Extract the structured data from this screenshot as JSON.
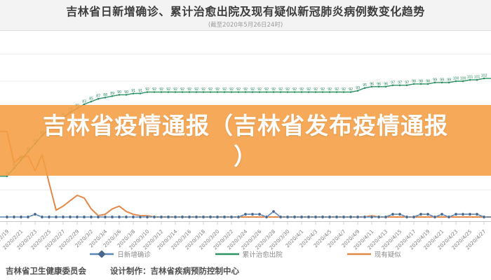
{
  "header": {
    "title": "吉林省日新增确诊、累计治愈出院及现有疑似新冠肺炎病例数变化趋势",
    "subtitle": "(截至2020年5月26日24时)"
  },
  "overlay": {
    "lines": [
      "吉林省疫情通报（吉林省发布疫情通报",
      "）"
    ],
    "banner_color": "#f49d42"
  },
  "footer": {
    "org": "吉林省卫生健康委员会",
    "credit": "设计制作：吉林省疾病预防控制中心"
  },
  "colors": {
    "header_bg": "#f3f3f3",
    "grid": "#ececec",
    "axis": "#c9c9c9",
    "tick_label": "#808080",
    "legend_text": "#8c8c8c"
  },
  "chart_data": {
    "type": "line",
    "title": "吉林省日新增确诊、累计治愈出院及现有疑似新冠肺炎病例数变化趋势",
    "subtitle": "(截至2020年5月26日24时)",
    "xlabel": "",
    "ylabel": "",
    "ylim": [
      0,
      131
    ],
    "grid": true,
    "grid_values": [
      20,
      40,
      60,
      80,
      100,
      120
    ],
    "legend_position": "bottom",
    "x": [
      "2020/2/19",
      "2020/2/20",
      "2020/2/21",
      "2020/2/22",
      "2020/2/23",
      "2020/2/24",
      "2020/2/25",
      "2020/2/26",
      "2020/2/27",
      "2020/2/28",
      "2020/2/29",
      "2020/3/1",
      "2020/3/2",
      "2020/3/3",
      "2020/3/4",
      "2020/3/5",
      "2020/3/6",
      "2020/3/7",
      "2020/3/8",
      "2020/3/9",
      "2020/3/10",
      "2020/3/11",
      "2020/3/12",
      "2020/3/13",
      "2020/3/14",
      "2020/3/15",
      "2020/3/16",
      "2020/3/17",
      "2020/3/18",
      "2020/3/19",
      "2020/3/20",
      "2020/3/21",
      "2020/3/22",
      "2020/3/23",
      "2020/3/24",
      "2020/3/25",
      "2020/3/26",
      "2020/3/27",
      "2020/3/28",
      "2020/3/29",
      "2020/3/30",
      "2020/3/31",
      "2020/4/1",
      "2020/4/2",
      "2020/4/3",
      "2020/4/4",
      "2020/4/5",
      "2020/4/6",
      "2020/4/7",
      "2020/4/8",
      "2020/4/9",
      "2020/4/10",
      "2020/4/11",
      "2020/4/12",
      "2020/4/13",
      "2020/4/14",
      "2020/4/15",
      "2020/4/16",
      "2020/4/17",
      "2020/4/18",
      "2020/4/19",
      "2020/4/20",
      "2020/4/21",
      "2020/4/22",
      "2020/4/23",
      "2020/4/24",
      "2020/4/25",
      "2020/4/26",
      "2020/4/27"
    ],
    "x_tick_labels": [
      "2020/2/19",
      "2020/2/21",
      "2020/2/23",
      "2020/2/25",
      "2020/2/27",
      "2020/2/29",
      "2020/3/2",
      "2020/3/4",
      "2020/3/6",
      "2020/3/8",
      "2020/3/10",
      "2020/3/12",
      "2020/3/14",
      "2020/3/16",
      "2020/3/18",
      "2020/3/20",
      "2020/3/22",
      "2020/3/24",
      "2020/3/26",
      "2020/3/28",
      "2020/3/30",
      "2020/4/1",
      "2020/4/3",
      "2020/4/5",
      "2020/4/7",
      "2020/4/9",
      "2020/4/11",
      "2020/4/13",
      "2020/4/15",
      "2020/4/17",
      "2020/4/19",
      "2020/4/21",
      "2020/4/23",
      "2020/4/25",
      "2020/4/27"
    ],
    "series": [
      {
        "name": "日新增确诊",
        "color": "#48678c",
        "line_color": "#5b87b5",
        "marker_color": "#48678c",
        "marker": "circle",
        "values": [
          0,
          0,
          0,
          0,
          2,
          0,
          0,
          0,
          0,
          0,
          0,
          0,
          0,
          0,
          0,
          0,
          0,
          0,
          0,
          0,
          0,
          0,
          0,
          0,
          0,
          0,
          0,
          0,
          0,
          0,
          0,
          0,
          0,
          0,
          2,
          2,
          2,
          0,
          4,
          0,
          0,
          0,
          0,
          0,
          0,
          0,
          0,
          0,
          0,
          0,
          0,
          0,
          0,
          0,
          0,
          2,
          2,
          0,
          0,
          2,
          2,
          0,
          2,
          0,
          2,
          2,
          2,
          2,
          0
        ]
      },
      {
        "name": "累计治愈出院",
        "color": "#2e9164",
        "line_color": "#2e9164",
        "marker_color": "#2e9164",
        "marker": "dot-with-value-label",
        "values": [
          30,
          36,
          42,
          48,
          54,
          60,
          65,
          69,
          73,
          77,
          80,
          83,
          85,
          87,
          88,
          89,
          90,
          90,
          91,
          91,
          92,
          92,
          92,
          92,
          92,
          92,
          92,
          92,
          92,
          92,
          92,
          92,
          92,
          92,
          92,
          92,
          92,
          92,
          92,
          92,
          92,
          92,
          92,
          92,
          92,
          92,
          92,
          92,
          92,
          92,
          93,
          95,
          96,
          96,
          96,
          97,
          97,
          97,
          98,
          98,
          98,
          99,
          99,
          99,
          100,
          100,
          101,
          101,
          102
        ]
      },
      {
        "name": "现有疑似",
        "color": "#e2894a",
        "line_color": "#e2894a",
        "marker_color": "#e2894a",
        "marker": "none",
        "values": [
          63,
          40,
          44,
          45,
          34,
          46,
          25,
          5,
          8,
          12,
          16,
          14,
          6,
          1,
          2,
          6,
          8,
          4,
          2,
          1,
          1,
          0,
          0,
          0,
          0,
          0,
          0,
          0,
          0,
          0,
          0,
          0,
          0,
          0,
          0,
          0,
          0,
          0,
          0,
          0,
          0,
          0,
          0,
          0,
          0,
          0,
          0,
          0,
          0,
          0,
          0,
          0,
          1,
          0,
          0,
          0,
          0,
          0,
          0,
          0,
          0,
          0,
          0,
          0,
          0,
          0,
          0,
          0,
          0
        ]
      }
    ]
  }
}
